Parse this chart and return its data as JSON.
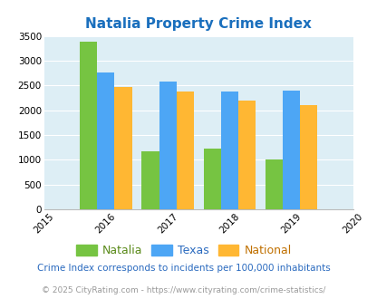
{
  "title": "Natalia Property Crime Index",
  "title_color": "#1a6fbd",
  "years": [
    2016,
    2017,
    2018,
    2019
  ],
  "natalia": [
    3380,
    1170,
    1220,
    1010
  ],
  "texas": [
    2760,
    2580,
    2370,
    2400
  ],
  "national": [
    2470,
    2370,
    2200,
    2110
  ],
  "bar_colors": {
    "natalia": "#76c442",
    "texas": "#4da6f5",
    "national": "#ffb733"
  },
  "xlim": [
    2015,
    2020
  ],
  "ylim": [
    0,
    3500
  ],
  "yticks": [
    0,
    500,
    1000,
    1500,
    2000,
    2500,
    3000,
    3500
  ],
  "xticks": [
    2015,
    2016,
    2017,
    2018,
    2019,
    2020
  ],
  "background_color": "#ddeef5",
  "legend_labels": [
    "Natalia",
    "Texas",
    "National"
  ],
  "legend_label_colors": [
    "#5a8a1a",
    "#2a6abf",
    "#c07000"
  ],
  "footnote1": "Crime Index corresponds to incidents per 100,000 inhabitants",
  "footnote2": "© 2025 CityRating.com - https://www.cityrating.com/crime-statistics/",
  "footnote1_color": "#2a6abf",
  "footnote2_color": "#999999",
  "bar_width": 0.28
}
